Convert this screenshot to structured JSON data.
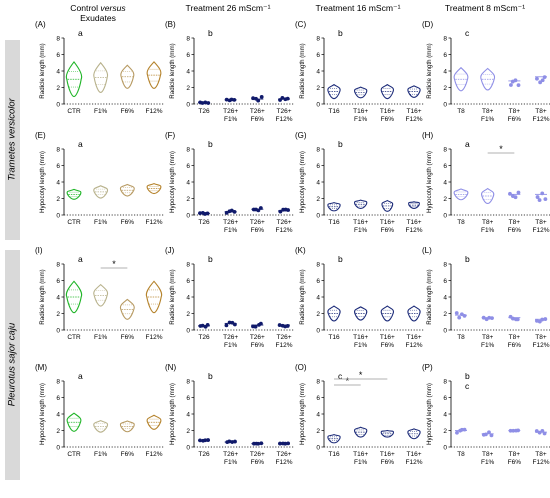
{
  "headers": {
    "col1": {
      "prefix": "Control",
      "versus": "versus",
      "sub": "Exudates"
    },
    "col2": "Treatment 26 mScm⁻¹",
    "col3": "Treatment 16 mScm⁻¹",
    "col4": "Treatment 8 mScm⁻¹"
  },
  "row_labels": [
    "Trametes versicolor",
    "Pleurotus sajor caju"
  ],
  "colors": {
    "ctr": "#1fb527",
    "f1": "#b8b28c",
    "f6": "#b79a62",
    "f12": "#b5832c",
    "t26": "#101a6b",
    "t16": "#1b2a78",
    "t8": "#8f8fe6",
    "dots": "#888888"
  },
  "chart_data": [
    {
      "panel": "(A)",
      "type": "violin",
      "ylabel": "Radicle length (mm)",
      "yticks": [
        0,
        2,
        4,
        6,
        8
      ],
      "ylim": [
        0,
        8
      ],
      "categories": [
        "CTR",
        "F1%",
        "F6%",
        "F12%"
      ],
      "letters": [
        "a"
      ],
      "kind": "violin",
      "center": [
        3,
        3.2,
        3.3,
        3.5
      ],
      "spread": [
        4.2,
        3.6,
        2.8,
        3.2
      ],
      "width": [
        1,
        0.9,
        0.85,
        0.9
      ],
      "colors": [
        "ctr",
        "f1",
        "f6",
        "f12"
      ]
    },
    {
      "panel": "(B)",
      "type": "scatter",
      "ylabel": "Radicle length (mm)",
      "yticks": [
        0,
        2,
        4,
        6,
        8
      ],
      "ylim": [
        0,
        8
      ],
      "categories": [
        "T26",
        "T26+\nF1%",
        "T26+\nF6%",
        "T26+\nF12%"
      ],
      "letters": [
        "b"
      ],
      "kind": "dots",
      "center": [
        0.2,
        0.5,
        0.6,
        0.6
      ],
      "spread": [
        0.2,
        0.3,
        0.6,
        0.3
      ],
      "width": [
        0.4,
        0.6,
        0.7,
        0.6
      ],
      "colors": [
        "t26",
        "t26",
        "t26",
        "t26"
      ]
    },
    {
      "panel": "(C)",
      "type": "violin",
      "ylabel": "Radicle length (mm)",
      "yticks": [
        0,
        2,
        4,
        6,
        8
      ],
      "ylim": [
        0,
        8
      ],
      "categories": [
        "T16",
        "T16+\nF1%",
        "T16+\nF6%",
        "T16+\nF12%"
      ],
      "letters": [
        "b"
      ],
      "kind": "violin",
      "center": [
        1.5,
        1.4,
        1.5,
        1.5
      ],
      "spread": [
        1.7,
        1.3,
        1.7,
        1.4
      ],
      "width": [
        0.8,
        0.8,
        0.8,
        0.8
      ],
      "colors": [
        "t16",
        "t16",
        "t16",
        "t16"
      ]
    },
    {
      "panel": "(D)",
      "type": "violin",
      "ylabel": "Radicle length (mm)",
      "yticks": [
        0,
        2,
        4,
        6,
        8
      ],
      "ylim": [
        0,
        8
      ],
      "categories": [
        "T8",
        "T8+\nF1%",
        "T8+\nF6%",
        "T8+\nF12%"
      ],
      "letters": [
        "c"
      ],
      "kind": "mixed",
      "center": [
        3,
        3,
        2.8,
        3.3
      ],
      "spread": [
        2.8,
        2.6,
        1.5,
        1.6
      ],
      "width": [
        0.9,
        0.9,
        0.8,
        0.8
      ],
      "colors": [
        "t8",
        "t8",
        "t8",
        "t8"
      ]
    },
    {
      "panel": "(E)",
      "type": "violin",
      "ylabel": "Hypocotyl length (mm)",
      "yticks": [
        0,
        2,
        4,
        6,
        8
      ],
      "ylim": [
        0,
        8
      ],
      "categories": [
        "CTR",
        "F1%",
        "F6%",
        "F12%"
      ],
      "letters": [
        "a"
      ],
      "kind": "violin",
      "center": [
        2.5,
        2.8,
        3,
        3.2
      ],
      "spread": [
        1.2,
        1.5,
        1.4,
        1.2
      ],
      "width": [
        0.9,
        0.9,
        0.9,
        0.9
      ],
      "colors": [
        "ctr",
        "f1",
        "f6",
        "f12"
      ]
    },
    {
      "panel": "(F)",
      "type": "scatter",
      "ylabel": "Hypocotyl length (mm)",
      "yticks": [
        0,
        2,
        4,
        6,
        8
      ],
      "ylim": [
        0,
        8
      ],
      "categories": [
        "T26",
        "T26+\nF1%",
        "T26+\nF6%",
        "T26+\nF12%"
      ],
      "letters": [
        "b"
      ],
      "kind": "dots",
      "center": [
        0.2,
        0.4,
        0.7,
        0.5
      ],
      "spread": [
        0.2,
        0.3,
        0.6,
        0.4
      ],
      "width": [
        0.4,
        0.6,
        0.7,
        0.6
      ],
      "colors": [
        "t26",
        "t26",
        "t26",
        "t26"
      ]
    },
    {
      "panel": "(G)",
      "type": "violin",
      "ylabel": "Hypocotyl length (mm)",
      "yticks": [
        0,
        2,
        4,
        6,
        8
      ],
      "ylim": [
        0,
        8
      ],
      "categories": [
        "T16",
        "T16+\nF1%",
        "T16+\nF6%",
        "T16+\nF12%"
      ],
      "letters": [
        "b"
      ],
      "kind": "violin",
      "center": [
        1,
        1.3,
        1.1,
        1.2
      ],
      "spread": [
        1,
        1,
        1.3,
        0.8
      ],
      "width": [
        0.8,
        0.8,
        0.7,
        0.7
      ],
      "colors": [
        "t16",
        "t16",
        "t16",
        "t16"
      ]
    },
    {
      "panel": "(H)",
      "type": "violin",
      "ylabel": "Hypocotyl length (mm)",
      "yticks": [
        0,
        2,
        4,
        6,
        8
      ],
      "ylim": [
        0,
        8
      ],
      "categories": [
        "T8",
        "T8+\nF1%",
        "T8+\nF6%",
        "T8+\nF12%"
      ],
      "letters": [
        "a"
      ],
      "kind": "mixed",
      "center": [
        2.5,
        2.3,
        2.5,
        2.5
      ],
      "spread": [
        1.3,
        1.8,
        1.2,
        1.4
      ],
      "width": [
        0.9,
        0.8,
        0.8,
        0.8
      ],
      "colors": [
        "t8",
        "t8",
        "t8",
        "t8"
      ],
      "sig": [
        {
          "from": 1,
          "to": 2,
          "label": "*"
        }
      ]
    },
    {
      "panel": "(I)",
      "type": "violin",
      "ylabel": "Radicle length (mm)",
      "yticks": [
        0,
        2,
        4,
        6,
        8
      ],
      "ylim": [
        0,
        8
      ],
      "categories": [
        "CTR",
        "F1%",
        "F6%",
        "F12%"
      ],
      "letters": [
        "a"
      ],
      "kind": "violin",
      "center": [
        4,
        4.2,
        2.5,
        4
      ],
      "spread": [
        3.8,
        2.6,
        2.4,
        3.8
      ],
      "width": [
        1,
        0.9,
        0.9,
        1
      ],
      "colors": [
        "ctr",
        "f1",
        "f6",
        "f12"
      ],
      "sig": [
        {
          "from": 1,
          "to": 2,
          "label": "*"
        }
      ]
    },
    {
      "panel": "(J)",
      "type": "scatter",
      "ylabel": "Radicle length (mm)",
      "yticks": [
        0,
        2,
        4,
        6,
        8
      ],
      "ylim": [
        0,
        8
      ],
      "categories": [
        "T26",
        "T26+\nF1%",
        "T26+\nF6%",
        "T26+\nF12%"
      ],
      "letters": [
        "b"
      ],
      "kind": "dots",
      "center": [
        0.5,
        0.8,
        0.6,
        0.6
      ],
      "spread": [
        0.3,
        0.5,
        0.5,
        0.4
      ],
      "width": [
        0.5,
        0.7,
        0.7,
        0.6
      ],
      "colors": [
        "t26",
        "t26",
        "t26",
        "t26"
      ]
    },
    {
      "panel": "(K)",
      "type": "violin",
      "ylabel": "Radicle length (mm)",
      "yticks": [
        0,
        2,
        4,
        6,
        8
      ],
      "ylim": [
        0,
        8
      ],
      "categories": [
        "T16",
        "T16+\nF1%",
        "T16+\nF6%",
        "T16+\nF12%"
      ],
      "letters": [
        "b"
      ],
      "kind": "violin",
      "center": [
        2,
        2,
        2,
        2
      ],
      "spread": [
        1.8,
        1.6,
        1.8,
        1.8
      ],
      "width": [
        0.8,
        0.8,
        0.8,
        0.8
      ],
      "colors": [
        "t16",
        "t16",
        "t16",
        "t16"
      ]
    },
    {
      "panel": "(L)",
      "type": "scatter",
      "ylabel": "Radicle length (mm)",
      "yticks": [
        0,
        2,
        4,
        6,
        8
      ],
      "ylim": [
        0,
        8
      ],
      "categories": [
        "T8",
        "T8+\nF1%",
        "T8+\nF6%",
        "T8+\nF12%"
      ],
      "letters": [
        "b"
      ],
      "kind": "dots",
      "center": [
        1.8,
        1.5,
        1.5,
        1.3
      ],
      "spread": [
        0.9,
        0.4,
        0.5,
        0.6
      ],
      "width": [
        0.7,
        0.6,
        0.5,
        0.6
      ],
      "colors": [
        "t8",
        "t8",
        "t8",
        "t8"
      ]
    },
    {
      "panel": "(M)",
      "type": "violin",
      "ylabel": "Hypocotyl length (mm)",
      "yticks": [
        0,
        2,
        4,
        6,
        8
      ],
      "ylim": [
        0,
        8
      ],
      "categories": [
        "CTR",
        "F1%",
        "F6%",
        "F12%"
      ],
      "letters": [
        "a"
      ],
      "kind": "violin",
      "center": [
        3,
        2.5,
        2.5,
        3
      ],
      "spread": [
        2.2,
        1.4,
        1.3,
        1.7
      ],
      "width": [
        0.9,
        0.9,
        0.9,
        0.9
      ],
      "colors": [
        "ctr",
        "f1",
        "f6",
        "f12"
      ]
    },
    {
      "panel": "(N)",
      "type": "scatter",
      "ylabel": "Hypocotyl length (mm)",
      "yticks": [
        0,
        2,
        4,
        6,
        8
      ],
      "ylim": [
        0,
        8
      ],
      "categories": [
        "T26",
        "T26+\nF1%",
        "T26+\nF6%",
        "T26+\nF12%"
      ],
      "letters": [
        "b"
      ],
      "kind": "dots",
      "center": [
        0.8,
        0.6,
        0.4,
        0.4
      ],
      "spread": [
        0.1,
        0.2,
        0.1,
        0.1
      ],
      "width": [
        0.3,
        0.5,
        0.5,
        0.5
      ],
      "colors": [
        "t26",
        "t26",
        "t26",
        "t26"
      ]
    },
    {
      "panel": "(O)",
      "type": "violin",
      "ylabel": "Hypocotyl length (mm)",
      "yticks": [
        0,
        2,
        4,
        6,
        8
      ],
      "ylim": [
        0,
        8
      ],
      "categories": [
        "T16",
        "T16+\nF1%",
        "T16+\nF6%",
        "T16+\nF12%"
      ],
      "letters": [
        "c"
      ],
      "kind": "violin",
      "center": [
        1,
        1.8,
        1.6,
        1.6
      ],
      "spread": [
        1,
        1.2,
        0.8,
        1.2
      ],
      "width": [
        0.8,
        0.8,
        0.8,
        0.8
      ],
      "colors": [
        "t16",
        "t16",
        "t16",
        "t16"
      ],
      "sig": [
        {
          "from": 0,
          "to": 1,
          "label": "*"
        },
        {
          "from": 0,
          "to": 2,
          "label": "*"
        }
      ]
    },
    {
      "panel": "(P)",
      "type": "scatter",
      "ylabel": "Hypocotyl length (mm)",
      "yticks": [
        0,
        2,
        4,
        6,
        8
      ],
      "ylim": [
        0,
        8
      ],
      "categories": [
        "T8",
        "T8+\nF1%",
        "T8+\nF6%",
        "T8+\nF12%"
      ],
      "letters": [
        "b",
        "c"
      ],
      "kind": "dots",
      "center": [
        2,
        1.6,
        2,
        1.8
      ],
      "spread": [
        0.6,
        0.4,
        0.1,
        0.4
      ],
      "width": [
        0.7,
        0.6,
        0.6,
        0.6
      ],
      "colors": [
        "t8",
        "t8",
        "t8",
        "t8"
      ]
    }
  ]
}
